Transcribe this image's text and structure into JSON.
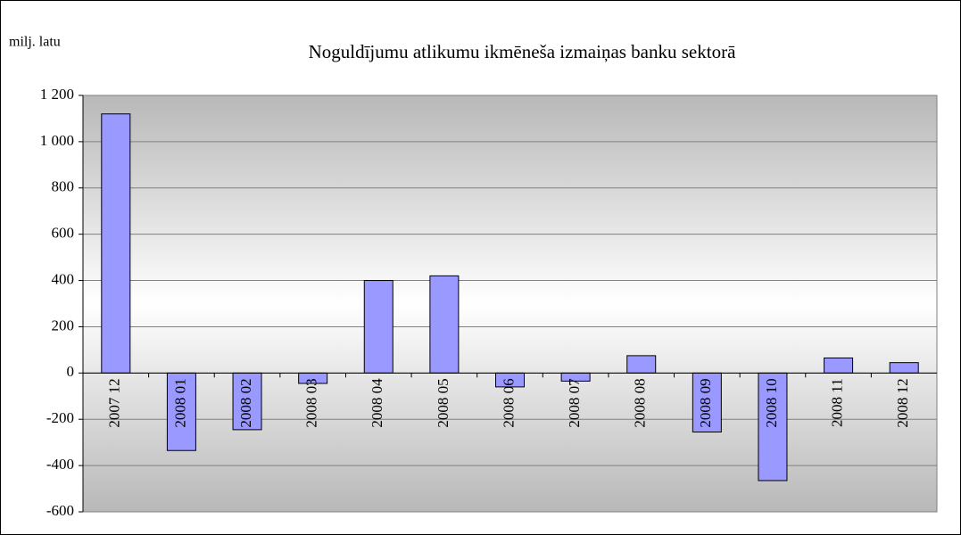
{
  "chart_data": {
    "type": "bar",
    "title": "Noguldījumu atlikumu ikmēneša izmaiņas banku sektorā",
    "y_axis_label": "milj. latu",
    "categories": [
      "2007 12",
      "2008 01",
      "2008 02",
      "2008 03",
      "2008 04",
      "2008 05",
      "2008 06",
      "2008 07",
      "2008 08",
      "2008 09",
      "2008 10",
      "2008 11",
      "2008 12"
    ],
    "values": [
      1120,
      -335,
      -245,
      -45,
      400,
      420,
      -60,
      -35,
      75,
      -255,
      -465,
      65,
      45
    ],
    "color": "#9999ff",
    "ylim": [
      -600,
      1200
    ],
    "yticks": [
      -600,
      -400,
      -200,
      0,
      200,
      400,
      600,
      800,
      {
        "value": 1000,
        "label": "1 000"
      },
      {
        "value": 1200,
        "label": "1 200"
      }
    ],
    "grid": true
  }
}
